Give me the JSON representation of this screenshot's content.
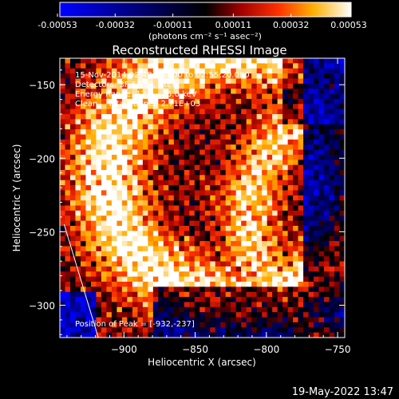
{
  "colorbar": {
    "ticks": [
      "-0.00053",
      "-0.00032",
      "-0.00011",
      "0.00011",
      "0.00032",
      "0.00053"
    ],
    "units": "(photons cm⁻² s⁻¹ asec⁻²)"
  },
  "header": {
    "title": "Reconstructed RHESSI Image",
    "info": [
      "15-Nov-2014 02:48:20.000 to 02:55:20.000",
      "Detectors: 3F 6F 9F, Att 0",
      "Energy Range: 12.0 - 25.0 keV",
      "Clean    Total counts: 2.71E+03"
    ],
    "peak": "Position of Peak = [-932,-237]"
  },
  "footer": {
    "timestamp": "19-May-2022 13:47"
  },
  "chart_data": {
    "type": "heatmap",
    "title": "Reconstructed RHESSI Image",
    "xlabel": "Heliocentric X (arcsec)",
    "ylabel": "Heliocentric Y (arcsec)",
    "xlim": [
      -945,
      -745
    ],
    "ylim": [
      -322,
      -132
    ],
    "xticks": [
      -900,
      -850,
      -800,
      -750
    ],
    "yticks": [
      -150,
      -200,
      -250,
      -300
    ],
    "xtick_labels": [
      "−900",
      "−850",
      "−800",
      "−750"
    ],
    "ytick_labels": [
      "−150",
      "−200",
      "−250",
      "−300"
    ],
    "colorbar_range": [
      -0.00053,
      0.00053
    ],
    "colormap": "blue-black-red-yellow-white",
    "peak_position": [
      -932,
      -237
    ],
    "limb_line": [
      [
        -942,
        -245
      ],
      [
        -918,
        -322
      ]
    ]
  }
}
